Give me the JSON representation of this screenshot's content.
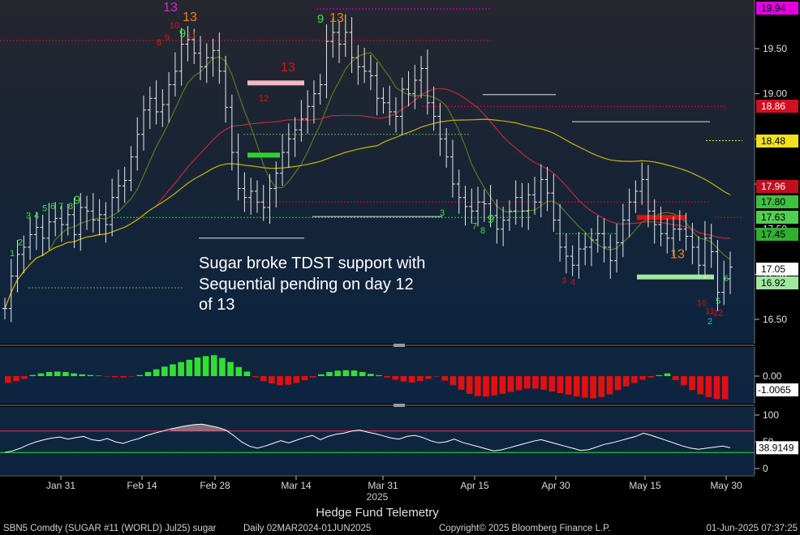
{
  "chart_data": {
    "type": "ohlc",
    "security": "SBN5 Comdty (SUGAR #11 (WORLD) Jul25) sugar",
    "period": "Daily 02MAR2024-01JUN2025",
    "source": "Hedge Fund Telemetry",
    "copyright": "Copyright© 2025 Bloomberg Finance L.P.",
    "timestamp": "01-Jun-2025 07:37:25",
    "x_tick_labels": [
      "Jan 31",
      "Feb 14",
      "Feb 28",
      "Mar 14",
      "Mar 31",
      "Apr 15",
      "Apr 30",
      "May 15",
      "May 30"
    ],
    "year_label": "2025",
    "annotation": {
      "lines": [
        "Sugar broke TDST support with",
        "Sequential pending on day 12",
        "of 13"
      ]
    },
    "price_panel": {
      "yticks": [
        16.5,
        17.0,
        17.5,
        18.0,
        18.5,
        19.0,
        19.5
      ],
      "ylim": [
        16.43,
        20.0
      ],
      "right_tags": [
        {
          "label": "19.94",
          "value": 19.94,
          "bg": "#e000e0",
          "fg": "#000000"
        },
        {
          "label": "18.86",
          "value": 18.86,
          "bg": "#d01020",
          "fg": "#ffffff"
        },
        {
          "label": "18.48",
          "value": 18.48,
          "bg": "#f0e020",
          "fg": "#000000"
        },
        {
          "label": "17.96",
          "value": 17.96,
          "bg": "#c01020",
          "fg": "#ffffff"
        },
        {
          "label": "17.80",
          "value": 17.8,
          "bg": "#40c040",
          "fg": "#000000"
        },
        {
          "label": "17.63",
          "value": 17.63,
          "bg": "#50d050",
          "fg": "#000000"
        },
        {
          "label": "17.45",
          "value": 17.45,
          "bg": "#30b030",
          "fg": "#000000"
        },
        {
          "label": "17.05",
          "value": 17.05,
          "bg": "#ffffff",
          "fg": "#000000"
        },
        {
          "label": "16.92",
          "value": 16.92,
          "bg": "#a0e8a0",
          "fg": "#000000"
        }
      ],
      "bars_close": [
        16.62,
        16.98,
        17.22,
        17.3,
        17.44,
        17.52,
        17.4,
        17.58,
        17.62,
        17.55,
        17.66,
        17.44,
        17.74,
        17.7,
        17.6,
        17.66,
        17.55,
        17.85,
        17.98,
        18.04,
        18.3,
        18.55,
        18.82,
        18.95,
        18.8,
        18.88,
        19.1,
        19.25,
        19.55,
        19.6,
        19.45,
        19.3,
        19.4,
        19.48,
        19.25,
        18.85,
        18.35,
        17.95,
        17.85,
        17.92,
        17.8,
        17.74,
        17.95,
        18.12,
        18.35,
        18.5,
        18.6,
        18.72,
        18.86,
        19.0,
        19.1,
        19.58,
        19.68,
        19.55,
        19.68,
        19.4,
        19.3,
        19.25,
        19.2,
        18.95,
        18.9,
        18.8,
        18.75,
        19.05,
        19.0,
        19.15,
        19.28,
        18.9,
        18.75,
        18.5,
        18.3,
        18.0,
        17.85,
        17.75,
        17.7,
        17.8,
        17.78,
        17.65,
        17.5,
        17.6,
        17.7,
        17.85,
        17.7,
        17.88,
        17.8,
        18.05,
        17.9,
        17.6,
        17.3,
        17.2,
        17.1,
        17.28,
        17.3,
        17.38,
        17.45,
        17.3,
        17.15,
        17.35,
        17.6,
        17.8,
        17.92,
        18.05,
        17.7,
        17.55,
        17.45,
        17.4,
        17.5,
        17.5,
        17.42,
        17.3,
        17.1,
        17.4,
        17.25,
        16.8,
        16.95,
        17.08
      ]
    },
    "td_counts": {
      "setup_buy_high": "9",
      "setup_sell_top": [
        "9",
        "9"
      ],
      "sequential_13": [
        "13",
        "13",
        "13",
        "13"
      ],
      "sample_counts": [
        "1",
        "2",
        "3",
        "4",
        "5",
        "6",
        "7",
        "8",
        "10",
        "11",
        "12"
      ]
    },
    "macd_panel": {
      "yticks": [
        "0.00"
      ],
      "tag": {
        "label": "-1.0065",
        "value": -1.0065
      },
      "values": [
        -0.3,
        -0.22,
        -0.12,
        0.05,
        0.12,
        0.18,
        0.2,
        0.18,
        0.12,
        0.08,
        0.05,
        0.02,
        -0.02,
        -0.05,
        -0.06,
        -0.02,
        0.05,
        0.18,
        0.3,
        0.42,
        0.52,
        0.62,
        0.72,
        0.82,
        0.88,
        0.92,
        0.8,
        0.62,
        0.4,
        0.2,
        -0.05,
        -0.22,
        -0.32,
        -0.4,
        -0.38,
        -0.3,
        -0.18,
        -0.06,
        0.08,
        0.18,
        0.24,
        0.26,
        0.25,
        0.18,
        0.1,
        0.04,
        -0.06,
        -0.16,
        -0.24,
        -0.28,
        -0.22,
        -0.12,
        -0.02,
        -0.2,
        -0.4,
        -0.6,
        -0.78,
        -0.88,
        -0.9,
        -0.85,
        -0.78,
        -0.7,
        -0.62,
        -0.55,
        -0.55,
        -0.6,
        -0.68,
        -0.75,
        -0.82,
        -0.9,
        -0.95,
        -0.98,
        -0.92,
        -0.8,
        -0.62,
        -0.45,
        -0.3,
        -0.16,
        -0.06,
        0.04,
        0.12,
        -0.18,
        -0.4,
        -0.62,
        -0.8,
        -0.92,
        -1.0,
        -1.02
      ]
    },
    "rsi_panel": {
      "yticks": [
        0,
        50,
        100
      ],
      "ylim": [
        0,
        100
      ],
      "upper_line": 70,
      "lower_line": 30,
      "tag": {
        "label": "38.9149",
        "value": 38.9149
      },
      "values": [
        30,
        33,
        38,
        45,
        50,
        54,
        57,
        59,
        55,
        58,
        60,
        54,
        52,
        56,
        50,
        47,
        52,
        56,
        62,
        66,
        70,
        74,
        77,
        80,
        82,
        83,
        80,
        77,
        72,
        62,
        50,
        42,
        38,
        42,
        47,
        52,
        48,
        53,
        58,
        62,
        54,
        60,
        64,
        66,
        70,
        72,
        68,
        65,
        61,
        57,
        55,
        60,
        62,
        58,
        52,
        48,
        50,
        55,
        49,
        45,
        41,
        37,
        33,
        35,
        39,
        43,
        47,
        51,
        54,
        50,
        46,
        42,
        38,
        34,
        35,
        40,
        45,
        48,
        52,
        56,
        60,
        66,
        62,
        57,
        52,
        47,
        42,
        38,
        36,
        38,
        40,
        42,
        39
      ]
    },
    "colors": {
      "panel_bg_top": "#26262e",
      "panel_bg_bottom": "#0c2440",
      "up_hist": "#30e030",
      "down_hist": "#e01010",
      "ma_short": "#5a7a20",
      "ma_mid": "#c0283a",
      "ma_long": "#c8b400",
      "rsi_line": "#ffffff",
      "rsi_upper": "#ff3030",
      "rsi_lower": "#30e030"
    }
  },
  "footer": {
    "left": "SBN5 Comdty (SUGAR #11 (WORLD) Jul25) sugar",
    "period": "Daily 02MAR2024-01JUN2025",
    "center": "Copyright© 2025 Bloomberg Finance L.P.",
    "right": "01-Jun-2025 07:37:25",
    "watermark": "Hedge Fund Telemetry"
  }
}
